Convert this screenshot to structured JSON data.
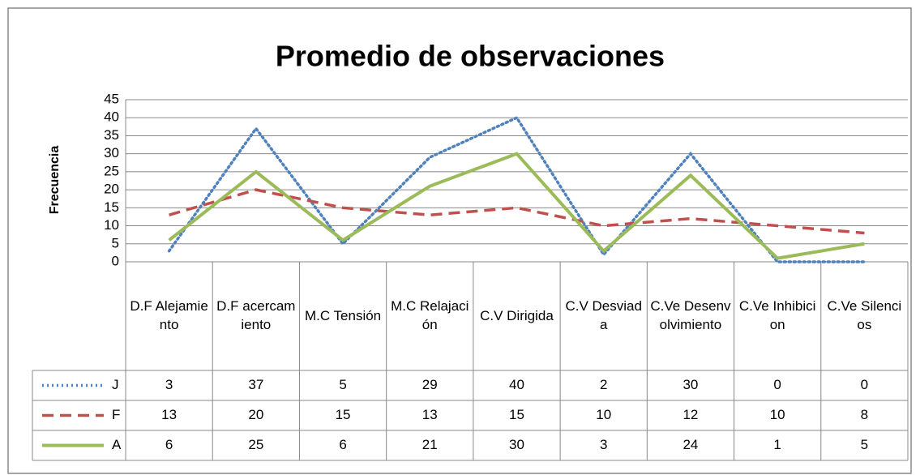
{
  "chart_data": {
    "type": "line",
    "title": "Promedio de observaciones",
    "y_label": "Frecuencia",
    "categories": [
      "D.F Alejamiento",
      "D.F acercamiento",
      "M.C Tensión",
      "M.C Relajación",
      "C.V Dirigida",
      "C.V Desviada",
      "C.Ve Desenvolvimiento",
      "C.Ve Inhibicion",
      "C.Ve Silencios"
    ],
    "series": [
      {
        "name": "J",
        "color": "#4f81bd",
        "dash": "dotted",
        "values": [
          3,
          37,
          5,
          29,
          40,
          2,
          30,
          0,
          0
        ]
      },
      {
        "name": "F",
        "color": "#c0504d",
        "dash": "dashed",
        "values": [
          13,
          20,
          15,
          13,
          15,
          10,
          12,
          10,
          8
        ]
      },
      {
        "name": "A",
        "color": "#9bbb59",
        "dash": "solid",
        "values": [
          6,
          25,
          6,
          21,
          30,
          3,
          24,
          1,
          5
        ]
      }
    ],
    "ylim": [
      0,
      45
    ],
    "yticks": [
      0,
      5,
      10,
      15,
      20,
      25,
      30,
      35,
      40,
      45
    ],
    "grid": true,
    "data_table": true
  }
}
